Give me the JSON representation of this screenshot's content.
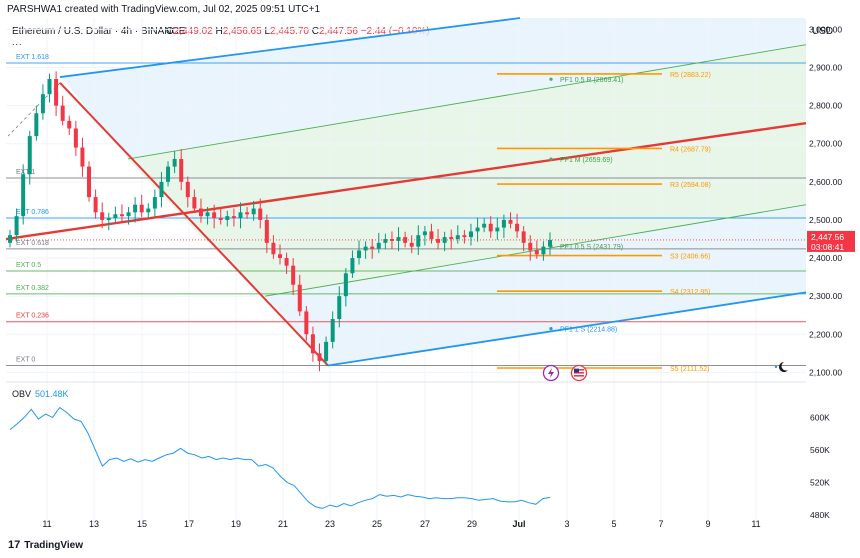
{
  "credit": "PARSHWA1 created with TradingView.com, Jul 02, 2025 09:51 UTC+1",
  "symbol": {
    "title": "Ethereum / U.S. Dollar · 4h · BINANCE",
    "o_label": "O",
    "o": "2,449.02",
    "h_label": "H",
    "h": "2,456.65",
    "l_label": "L",
    "l": "2,445.70",
    "c_label": "C",
    "c": "2,447.56",
    "change": "−2.44 (−0.10%)",
    "more": "..."
  },
  "currency": "USD",
  "current_price": {
    "value": "2,447.56",
    "countdown": "03:08:41",
    "price": 2447.56
  },
  "colors": {
    "up": "#089981",
    "down": "#f23645",
    "blue": "#2196f3",
    "green": "#4caf50",
    "orange": "#ff9800",
    "red_line": "#e53935",
    "grid": "#f0f3fa",
    "axis_text": "#131722"
  },
  "chart_data": [
    {
      "type": "line",
      "title": "Ethereum / U.S. Dollar · 4h · BINANCE",
      "ylabel": "USD",
      "ylim": [
        2080,
        3030
      ],
      "x_ticks": [
        "11",
        "13",
        "15",
        "17",
        "19",
        "21",
        "23",
        "25",
        "27",
        "29",
        "Jul",
        "3",
        "5",
        "7",
        "9",
        "11"
      ],
      "y_ticks": [
        "2,100.00",
        "2,200.00",
        "2,300.00",
        "2,400.00",
        "2,500.00",
        "2,600.00",
        "2,700.00",
        "2,800.00",
        "2,900.00",
        "3,000.00"
      ],
      "y_tick_values": [
        2100,
        2200,
        2300,
        2400,
        2500,
        2600,
        2700,
        2800,
        2900,
        3000
      ],
      "fib_extension": [
        {
          "label": "EXT 1.618",
          "price": 2912,
          "color": "#2196f3"
        },
        {
          "label": "EXT 1",
          "price": 2610,
          "color": "#787b86"
        },
        {
          "label": "EXT 0.786",
          "price": 2505,
          "color": "#2196f3"
        },
        {
          "label": "EXT 0.618",
          "price": 2424,
          "color": "#787b86"
        },
        {
          "label": "EXT 0.5",
          "price": 2366,
          "color": "#4caf50"
        },
        {
          "label": "EXT 0.382",
          "price": 2306,
          "color": "#4caf50"
        },
        {
          "label": "EXT 0.236",
          "price": 2233,
          "color": "#f23645"
        },
        {
          "label": "EXT 0",
          "price": 2118,
          "color": "#787b86"
        }
      ],
      "pivot_levels": [
        {
          "label": "R5 (2883.22)",
          "price": 2883.22
        },
        {
          "label": "R4 (2687.79)",
          "price": 2687.79
        },
        {
          "label": "R3 (2594.08)",
          "price": 2594.08
        },
        {
          "label": "S3 (2406.66)",
          "price": 2406.66
        },
        {
          "label": "S4 (2312.95)",
          "price": 2312.95
        },
        {
          "label": "S5 (2111.52)",
          "price": 2111.52
        }
      ],
      "pitchfork_labels": [
        {
          "label": "PF1 0.5 R (2869.41)",
          "price": 2869.41
        },
        {
          "label": "PF1 M (2659.69)",
          "price": 2659.69
        },
        {
          "label": "PF1 0.5 S (2431.79)",
          "price": 2431.79
        },
        {
          "label": "PF1 1 S (2214.88)",
          "price": 2214.88
        }
      ],
      "close_series": [
        2460,
        2510,
        2620,
        2720,
        2780,
        2830,
        2870,
        2800,
        2760,
        2740,
        2690,
        2640,
        2560,
        2520,
        2500,
        2505,
        2515,
        2510,
        2520,
        2540,
        2520,
        2530,
        2560,
        2600,
        2640,
        2660,
        2600,
        2560,
        2530,
        2510,
        2520,
        2505,
        2500,
        2510,
        2505,
        2520,
        2515,
        2530,
        2500,
        2440,
        2410,
        2400,
        2380,
        2330,
        2260,
        2200,
        2150,
        2130,
        2180,
        2240,
        2300,
        2360,
        2400,
        2420,
        2430,
        2425,
        2440,
        2450,
        2445,
        2455,
        2440,
        2430,
        2460,
        2470,
        2450,
        2440,
        2455,
        2450,
        2460,
        2455,
        2470,
        2480,
        2490,
        2470,
        2480,
        2500,
        2490,
        2470,
        2440,
        2420,
        2410,
        2430,
        2447.56
      ]
    },
    {
      "type": "line",
      "title": "OBV",
      "value_label": "501.48K",
      "ylim": [
        470,
        630
      ],
      "y_ticks": [
        "480K",
        "520K",
        "560K",
        "600K"
      ],
      "y_tick_values": [
        480,
        520,
        560,
        600
      ],
      "values": [
        585,
        592,
        600,
        610,
        598,
        604,
        600,
        612,
        606,
        598,
        595,
        580,
        560,
        540,
        548,
        550,
        546,
        549,
        545,
        548,
        546,
        550,
        554,
        556,
        562,
        556,
        554,
        550,
        552,
        548,
        550,
        548,
        550,
        548,
        548,
        540,
        542,
        538,
        528,
        520,
        516,
        506,
        496,
        490,
        488,
        492,
        490,
        494,
        491,
        495,
        498,
        500,
        505,
        503,
        504,
        502,
        505,
        503,
        502,
        500,
        501,
        500,
        500,
        501,
        501,
        500,
        498,
        499,
        500,
        497,
        496,
        496,
        498,
        495,
        493,
        500,
        501.48
      ]
    }
  ],
  "footer": {
    "brand": "TradingView",
    "mark": "17"
  }
}
